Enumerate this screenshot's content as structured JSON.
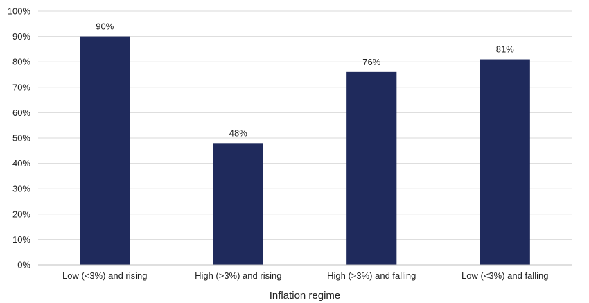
{
  "chart_data": {
    "type": "bar",
    "title": "",
    "xlabel": "Inflation regime",
    "ylabel": "",
    "categories": [
      "Low (<3%) and rising",
      "High (>3%) and rising",
      "High (>3%) and falling",
      "Low (<3%) and falling"
    ],
    "values": [
      90,
      48,
      76,
      81
    ],
    "data_labels": [
      "90%",
      "48%",
      "76%",
      "81%"
    ],
    "ylim": [
      0,
      100
    ],
    "yticks": [
      0,
      10,
      20,
      30,
      40,
      50,
      60,
      70,
      80,
      90,
      100
    ],
    "ytick_labels": [
      "0%",
      "10%",
      "20%",
      "30%",
      "40%",
      "50%",
      "60%",
      "70%",
      "80%",
      "90%",
      "100%"
    ],
    "grid": true,
    "legend": "none",
    "bar_color": "#1f2a5c"
  }
}
